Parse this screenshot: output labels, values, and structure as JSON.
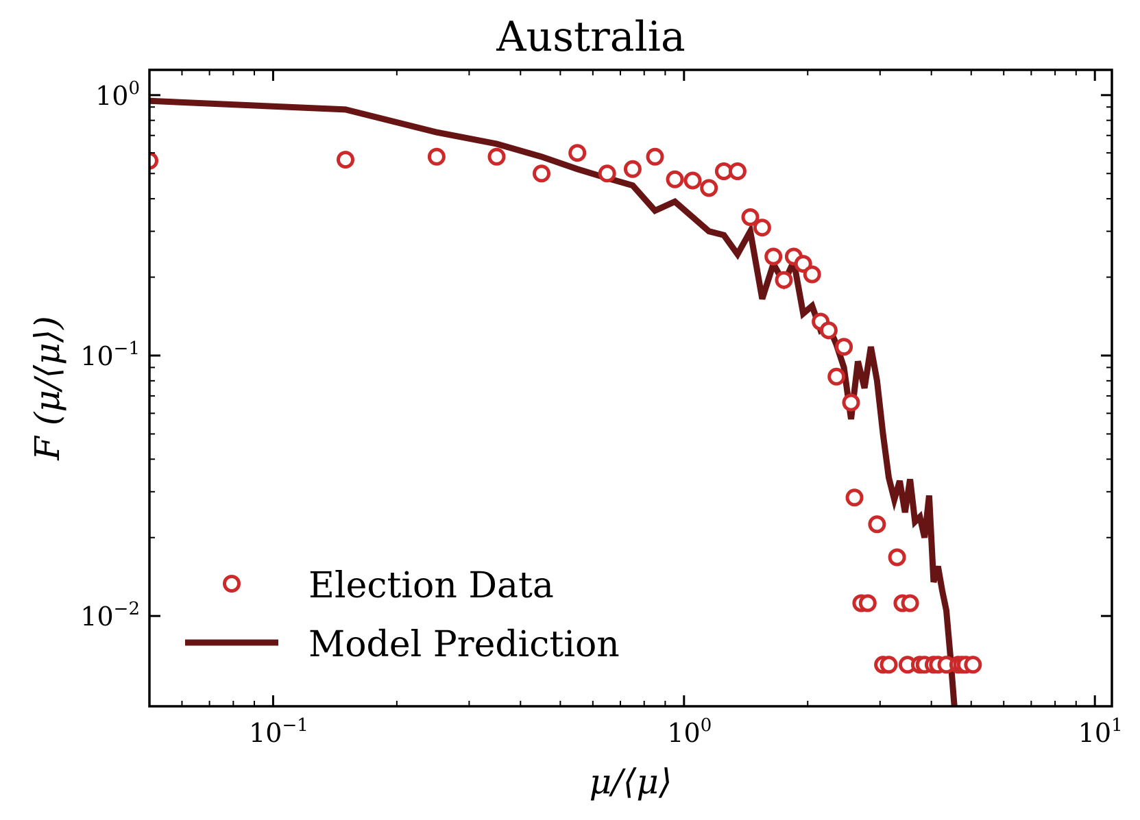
{
  "chart_data": {
    "type": "scatter",
    "title": "Australia",
    "xlabel": "μ/⟨μ⟩",
    "ylabel": "F (μ/⟨μ⟩)",
    "xscale": "log",
    "yscale": "log",
    "xlim": [
      0.05,
      11
    ],
    "ylim": [
      0.0045,
      1.25
    ],
    "grid": false,
    "legend_position": "bottom-left",
    "colors": {
      "data_marker": "#cc2a2a",
      "model_line": "#661414"
    },
    "xticks": [
      {
        "base": "10",
        "exp": "−1",
        "value": 0.1
      },
      {
        "base": "10",
        "exp": "0",
        "value": 1
      },
      {
        "base": "10",
        "exp": "1",
        "value": 10
      }
    ],
    "yticks": [
      {
        "base": "10",
        "exp": "0",
        "value": 1
      },
      {
        "base": "10",
        "exp": "−1",
        "value": 0.1
      },
      {
        "base": "10",
        "exp": "−2",
        "value": 0.01
      }
    ],
    "series": [
      {
        "name": "Election Data",
        "kind": "scatter",
        "marker": "open-circle",
        "points": [
          [
            0.05,
            0.56
          ],
          [
            0.15,
            0.565
          ],
          [
            0.25,
            0.58
          ],
          [
            0.35,
            0.58
          ],
          [
            0.45,
            0.5
          ],
          [
            0.55,
            0.6
          ],
          [
            0.65,
            0.5
          ],
          [
            0.75,
            0.52
          ],
          [
            0.85,
            0.58
          ],
          [
            0.95,
            0.475
          ],
          [
            1.05,
            0.47
          ],
          [
            1.15,
            0.44
          ],
          [
            1.25,
            0.51
          ],
          [
            1.35,
            0.51
          ],
          [
            1.45,
            0.34
          ],
          [
            1.55,
            0.31
          ],
          [
            1.65,
            0.24
          ],
          [
            1.75,
            0.195
          ],
          [
            1.85,
            0.24
          ],
          [
            1.95,
            0.225
          ],
          [
            2.05,
            0.205
          ],
          [
            2.15,
            0.135
          ],
          [
            2.25,
            0.125
          ],
          [
            2.45,
            0.108
          ],
          [
            2.35,
            0.083
          ],
          [
            2.55,
            0.066
          ],
          [
            2.6,
            0.0285
          ],
          [
            2.7,
            0.0112
          ],
          [
            2.8,
            0.0112
          ],
          [
            2.95,
            0.0225
          ],
          [
            3.05,
            0.0065
          ],
          [
            3.15,
            0.0065
          ],
          [
            3.3,
            0.0168
          ],
          [
            3.4,
            0.0112
          ],
          [
            3.55,
            0.0112
          ],
          [
            3.5,
            0.0065
          ],
          [
            3.75,
            0.0065
          ],
          [
            3.85,
            0.0065
          ],
          [
            4.05,
            0.0065
          ],
          [
            4.15,
            0.0065
          ],
          [
            4.35,
            0.0065
          ],
          [
            4.65,
            0.0065
          ],
          [
            4.75,
            0.0065
          ],
          [
            4.85,
            0.0065
          ],
          [
            5.05,
            0.0065
          ]
        ]
      },
      {
        "name": "Model Prediction",
        "kind": "line",
        "points": [
          [
            0.05,
            0.95
          ],
          [
            0.15,
            0.88
          ],
          [
            0.25,
            0.72
          ],
          [
            0.35,
            0.65
          ],
          [
            0.45,
            0.58
          ],
          [
            0.55,
            0.52
          ],
          [
            0.65,
            0.48
          ],
          [
            0.75,
            0.45
          ],
          [
            0.85,
            0.36
          ],
          [
            0.95,
            0.39
          ],
          [
            1.05,
            0.34
          ],
          [
            1.15,
            0.3
          ],
          [
            1.25,
            0.29
          ],
          [
            1.35,
            0.245
          ],
          [
            1.45,
            0.3
          ],
          [
            1.55,
            0.165
          ],
          [
            1.65,
            0.225
          ],
          [
            1.75,
            0.19
          ],
          [
            1.85,
            0.23
          ],
          [
            1.95,
            0.145
          ],
          [
            2.05,
            0.155
          ],
          [
            2.15,
            0.125
          ],
          [
            2.25,
            0.13
          ],
          [
            2.35,
            0.11
          ],
          [
            2.45,
            0.09
          ],
          [
            2.55,
            0.057
          ],
          [
            2.65,
            0.095
          ],
          [
            2.75,
            0.075
          ],
          [
            2.85,
            0.108
          ],
          [
            2.95,
            0.08
          ],
          [
            3.05,
            0.05
          ],
          [
            3.15,
            0.034
          ],
          [
            3.25,
            0.028
          ],
          [
            3.35,
            0.033
          ],
          [
            3.45,
            0.025
          ],
          [
            3.55,
            0.0335
          ],
          [
            3.65,
            0.023
          ],
          [
            3.75,
            0.024
          ],
          [
            3.85,
            0.02
          ],
          [
            3.95,
            0.029
          ],
          [
            4.05,
            0.0135
          ],
          [
            4.15,
            0.0155
          ],
          [
            4.25,
            0.0125
          ],
          [
            4.35,
            0.0105
          ],
          [
            4.45,
            0.007
          ],
          [
            4.55,
            0.0045
          ]
        ]
      }
    ]
  }
}
